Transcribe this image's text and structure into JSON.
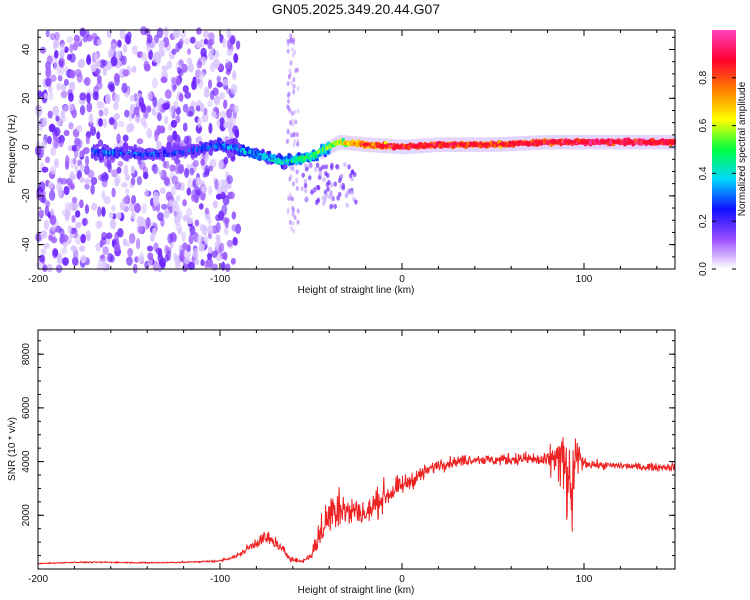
{
  "title": "GN05.2025.349.20.44.G07",
  "chart_data": [
    {
      "type": "heatmap",
      "name": "spectrogram",
      "xlabel": "Height of straight line (km)",
      "ylabel": "Frequency (Hz)",
      "xlim": [
        -200,
        150
      ],
      "ylim": [
        -50,
        48
      ],
      "xticks": [
        -200,
        -100,
        0,
        100
      ],
      "xtick_labels": [
        "-200",
        "-100",
        "0",
        "100"
      ],
      "yticks": [
        -40,
        -20,
        0,
        20,
        40
      ],
      "ytick_labels": [
        "-40",
        "-20",
        "0",
        "20",
        "40"
      ],
      "colorbar": {
        "label": "Normalized spectral amplitude",
        "range": [
          0.0,
          1.0
        ],
        "ticks": [
          0.0,
          0.2,
          0.4,
          0.6,
          0.8
        ],
        "tick_labels": [
          "0.0",
          "0.2",
          "0.4",
          "0.6",
          "0.8"
        ],
        "colors": [
          "#ffffff",
          "#9a4dff",
          "#1010ff",
          "#00d8ff",
          "#00ff40",
          "#ffff00",
          "#ff7f00",
          "#ff0030",
          "#ff40c0"
        ]
      },
      "ridge": [
        {
          "x": -165,
          "y": -2,
          "amp": 0.3
        },
        {
          "x": -140,
          "y": -3,
          "amp": 0.3
        },
        {
          "x": -120,
          "y": -2,
          "amp": 0.25
        },
        {
          "x": -100,
          "y": 1,
          "amp": 0.35
        },
        {
          "x": -80,
          "y": -3,
          "amp": 0.4
        },
        {
          "x": -65,
          "y": -6,
          "amp": 0.45
        },
        {
          "x": -50,
          "y": -4,
          "amp": 0.5
        },
        {
          "x": -35,
          "y": 2,
          "amp": 0.6
        },
        {
          "x": -20,
          "y": 1,
          "amp": 0.8
        },
        {
          "x": 0,
          "y": 0,
          "amp": 0.9
        },
        {
          "x": 20,
          "y": 1,
          "amp": 0.9
        },
        {
          "x": 50,
          "y": 1,
          "amp": 0.85
        },
        {
          "x": 80,
          "y": 2,
          "amp": 0.9
        },
        {
          "x": 95,
          "y": 2,
          "amp": 0.95
        },
        {
          "x": 120,
          "y": 2,
          "amp": 0.95
        },
        {
          "x": 150,
          "y": 2,
          "amp": 0.9
        }
      ]
    },
    {
      "type": "line",
      "name": "snr",
      "xlabel": "Height of straight line (km)",
      "ylabel": "SNR (10 * v/v)",
      "xlim": [
        -200,
        150
      ],
      "ylim": [
        0,
        8900
      ],
      "xticks": [
        -200,
        -100,
        0,
        100
      ],
      "xtick_labels": [
        "-200",
        "-100",
        "0",
        "100"
      ],
      "yticks": [
        2000,
        4000,
        6000,
        8000
      ],
      "ytick_labels": [
        "2000",
        "4000",
        "6000",
        "8000"
      ],
      "line_color": "#ee2222",
      "x": [
        -200,
        -180,
        -160,
        -140,
        -120,
        -100,
        -90,
        -80,
        -75,
        -70,
        -65,
        -60,
        -55,
        -50,
        -45,
        -40,
        -35,
        -30,
        -25,
        -20,
        -15,
        -10,
        -5,
        0,
        10,
        20,
        30,
        40,
        50,
        60,
        70,
        80,
        85,
        90,
        92,
        95,
        97,
        100,
        110,
        120,
        130,
        140,
        150
      ],
      "y": [
        200,
        250,
        250,
        230,
        250,
        300,
        500,
        1000,
        1150,
        1000,
        650,
        350,
        280,
        500,
        1300,
        2000,
        2500,
        2100,
        2200,
        2000,
        2400,
        2700,
        2900,
        3100,
        3500,
        3900,
        4000,
        4100,
        4050,
        4100,
        4100,
        4000,
        4200,
        3700,
        2500,
        3500,
        4200,
        3950,
        3850,
        3850,
        3800,
        3800,
        3800
      ],
      "noise": [
        15,
        20,
        20,
        20,
        20,
        30,
        80,
        180,
        260,
        220,
        160,
        80,
        60,
        120,
        500,
        700,
        900,
        500,
        450,
        400,
        450,
        450,
        380,
        300,
        250,
        200,
        180,
        170,
        170,
        200,
        220,
        300,
        700,
        1400,
        1700,
        1600,
        500,
        150,
        120,
        120,
        120,
        120,
        120
      ]
    }
  ]
}
